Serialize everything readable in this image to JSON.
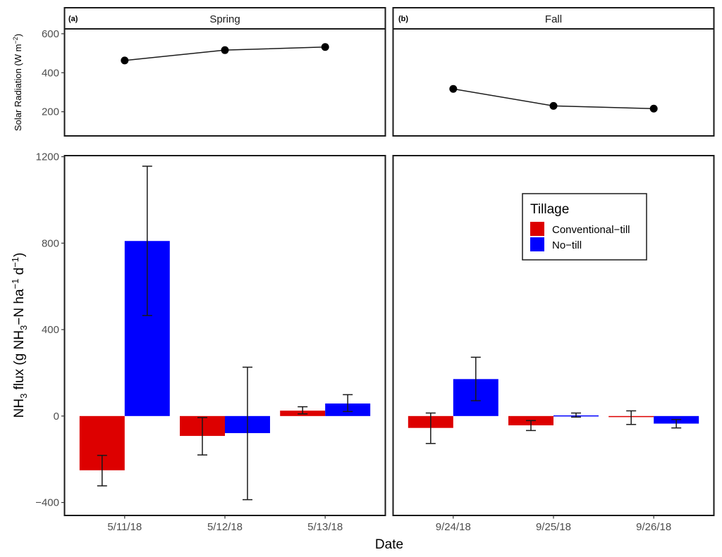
{
  "chart_data": [
    {
      "id": "solar_radiation",
      "type": "line",
      "ylabel": "Solar Radiation (W m",
      "ylabel_superscript": "−2",
      "ylabel_close": ")",
      "ylim": [
        76,
        625
      ],
      "yticks": [
        200,
        400,
        600
      ],
      "ytick_labels": [
        "200",
        "400",
        "600"
      ],
      "grid": false,
      "panels": [
        {
          "tag": "(a)",
          "strip_title": "Spring",
          "categories": [
            "5/11/18",
            "5/12/18",
            "5/13/18"
          ],
          "values": [
            463,
            516,
            532
          ]
        },
        {
          "tag": "(b)",
          "strip_title": "Fall",
          "categories": [
            "9/24/18",
            "9/25/18",
            "9/26/18"
          ],
          "values": [
            317,
            230,
            216
          ]
        }
      ]
    },
    {
      "id": "nh3_flux",
      "type": "bar",
      "xlabel": "Date",
      "ylabel_parts": {
        "p1": "NH",
        "sub1": "3",
        "p2": " flux (g NH",
        "sub2": "3",
        "p3": "−N ha",
        "sup1": "−1",
        "p4": " d",
        "sup2": "−1",
        "p5": ")"
      },
      "ylim": [
        -460,
        1205
      ],
      "yticks": [
        -400,
        0,
        400,
        800,
        1200
      ],
      "ytick_labels": [
        "−400",
        "0",
        "400",
        "800",
        "1200"
      ],
      "grid": false,
      "legend": {
        "title": "Tillage",
        "position": "top-right of Fall panel",
        "entries": [
          {
            "name": "Conventional−till",
            "color": "#dd0000"
          },
          {
            "name": "No−till",
            "color": "#0000ff"
          }
        ]
      },
      "series": [
        {
          "name": "Conventional-till",
          "color": "#dd0000"
        },
        {
          "name": "No-till",
          "color": "#0000ff"
        }
      ],
      "panels": [
        {
          "strip_title": "Spring",
          "categories": [
            "5/11/18",
            "5/12/18",
            "5/13/18"
          ],
          "series_values": {
            "Conventional-till": [
              -251,
              -92,
              25
            ],
            "No-till": [
              810,
              -79,
              58
            ]
          },
          "error_bars": {
            "Conventional-till": [
              [
                -323,
                -182
              ],
              [
                -180,
                -7
              ],
              [
                10,
                43
              ]
            ],
            "No-till": [
              [
                465,
                1156
              ],
              [
                -387,
                226
              ],
              [
                21,
                99
              ]
            ]
          }
        },
        {
          "strip_title": "Fall",
          "categories": [
            "9/24/18",
            "9/25/18",
            "9/26/18"
          ],
          "series_values": {
            "Conventional-till": [
              -55,
              -43,
              -3
            ],
            "No-till": [
              171,
              3,
              -35
            ]
          },
          "error_bars": {
            "Conventional-till": [
              [
                -127,
                14
              ],
              [
                -67,
                -21
              ],
              [
                -39,
                24
              ]
            ],
            "No-till": [
              [
                71,
                272
              ],
              [
                -5,
                14
              ],
              [
                -55,
                -16
              ]
            ]
          }
        }
      ]
    }
  ]
}
